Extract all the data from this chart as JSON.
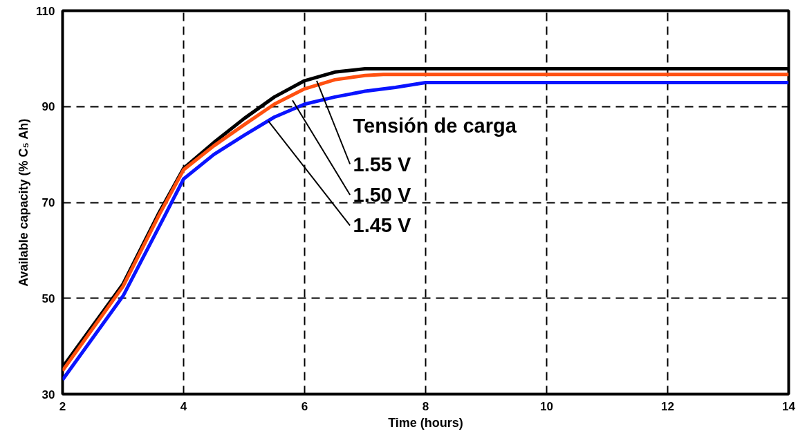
{
  "chart_data": {
    "type": "line",
    "xlabel": "Time (hours)",
    "ylabel": "Available capacity (% C₅ Ah)",
    "xlim": [
      2,
      14
    ],
    "ylim": [
      30,
      110
    ],
    "xticks": [
      2,
      4,
      6,
      8,
      10,
      12,
      14
    ],
    "yticks": [
      30,
      50,
      70,
      90,
      110
    ],
    "grid": true,
    "line_style": "solid",
    "marker": "none",
    "series": [
      {
        "color": "#000000",
        "x": [
          2,
          3,
          3.6,
          4,
          4.5,
          5,
          5.5,
          6,
          6.5,
          7,
          14
        ],
        "values": [
          35.6,
          53,
          68,
          77.1,
          82.5,
          87.5,
          92,
          95.4,
          97.2,
          97.9,
          97.9
        ]
      },
      {
        "color": "#ff5010",
        "x": [
          2,
          3,
          3.6,
          4,
          4.5,
          5,
          5.5,
          6,
          6.5,
          7,
          7.3,
          14
        ],
        "values": [
          34.9,
          52.5,
          67.5,
          76.8,
          81.8,
          86.2,
          90.5,
          93.7,
          95.6,
          96.5,
          96.7,
          96.7
        ]
      },
      {
        "color": "#0a14ff",
        "x": [
          2,
          3,
          3.7,
          4,
          4.5,
          5,
          5.5,
          6,
          6.5,
          7,
          7.5,
          8,
          14
        ],
        "values": [
          33,
          50.5,
          67.5,
          74.9,
          80,
          84,
          87.8,
          90.5,
          92,
          93.2,
          94,
          95,
          95
        ]
      }
    ],
    "annotations": [
      "Tensión de carga",
      {
        "text": "1.55 V",
        "x": 6.2,
        "y": 95.4
      },
      {
        "text": "1.50 V",
        "x": 5.8,
        "y": 91.3
      },
      {
        "text": "1.45 V",
        "x": 5.4,
        "y": 87.0
      }
    ]
  }
}
